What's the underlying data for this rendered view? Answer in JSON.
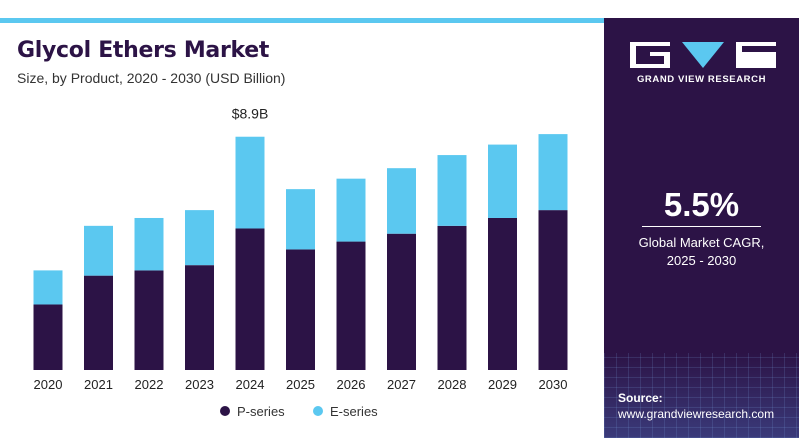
{
  "header": {
    "title": "Glycol Ethers Market",
    "subtitle": "Size, by Product, 2020 - 2030 (USD Billion)"
  },
  "chart_data": {
    "type": "bar",
    "stacked": true,
    "categories": [
      "2020",
      "2021",
      "2022",
      "2023",
      "2024",
      "2025",
      "2026",
      "2027",
      "2028",
      "2029",
      "2030"
    ],
    "series": [
      {
        "name": "P-series",
        "color": "#2c1346",
        "values": [
          2.5,
          3.6,
          3.8,
          4.0,
          5.4,
          4.6,
          4.9,
          5.2,
          5.5,
          5.8,
          6.1
        ]
      },
      {
        "name": "E-series",
        "color": "#5bc8f0",
        "values": [
          1.3,
          1.9,
          2.0,
          2.1,
          3.5,
          2.3,
          2.4,
          2.5,
          2.7,
          2.8,
          2.9
        ]
      }
    ],
    "annotations": [
      {
        "category": "2024",
        "text": "$8.9B"
      }
    ],
    "legend": {
      "position": "bottom",
      "items": [
        "P-series",
        "E-series"
      ]
    },
    "ylim": [
      0,
      9.5
    ],
    "grid": false,
    "xlabel": "",
    "ylabel": ""
  },
  "panel": {
    "brand": "GRAND VIEW RESEARCH",
    "logo_icon": "grand-view-research-logo",
    "cagr_value": "5.5%",
    "cagr_label": "Global Market CAGR,",
    "cagr_period": "2025 - 2030",
    "source_title": "Source:",
    "source_url": "www.grandviewresearch.com",
    "colors": {
      "background": "#2c1346",
      "accent": "#5bc8f0"
    }
  }
}
